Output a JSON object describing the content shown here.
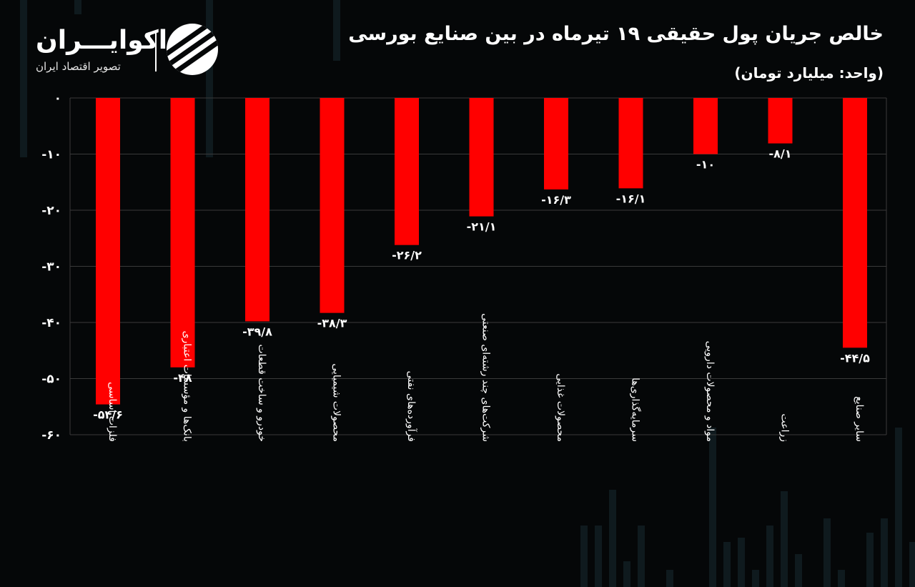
{
  "header": {
    "title": "خالص جریان پول حقیقی ۱۹ تیرماه در بین صنایع بورسی",
    "subtitle": "(واحد: میلیارد تومان)"
  },
  "brand": {
    "name": "اکوایـــران",
    "tagline": "تصویر اقتصاد ایران",
    "logo_icon": "ecoiran-logo-icon"
  },
  "colors": {
    "background": "#050708",
    "bar": "#ff0000",
    "grid": "#3a3a3a",
    "text": "#ffffff"
  },
  "chart_data": {
    "type": "bar",
    "title": "خالص جریان پول حقیقی ۱۹ تیرماه در بین صنایع بورسی",
    "subtitle": "(واحد: میلیارد تومان)",
    "categories": [
      "فلزات اساسی",
      "بانک‌ها و مؤسسات اعتباری",
      "خودرو و ساخت قطعات",
      "محصولات شیمیایی",
      "فرآورده‌های نفتی",
      "شرکت‌های چند رشته‌ای صنعتی",
      "محصولات غذایی",
      "سرمایه‌گذاری‌ها",
      "مواد و محصولات دارویی",
      "زراعت",
      "سایر صنایع"
    ],
    "values": [
      -54.6,
      -48,
      -39.8,
      -38.3,
      -26.2,
      -21.1,
      -16.3,
      -16.1,
      -10,
      -8.1,
      -44.5
    ],
    "value_labels": [
      "-۵۴/۶",
      "-۴۸",
      "-۳۹/۸",
      "-۳۸/۳",
      "-۲۶/۲",
      "-۲۱/۱",
      "-۱۶/۳",
      "-۱۶/۱",
      "-۱۰",
      "-۸/۱",
      "-۴۴/۵"
    ],
    "y_ticks": [
      0,
      -10,
      -20,
      -30,
      -40,
      -50,
      -60
    ],
    "y_tick_labels": [
      "۰",
      "-۱۰",
      "-۲۰",
      "-۳۰",
      "-۴۰",
      "-۵۰",
      "-۶۰"
    ],
    "ylim": [
      -60,
      0
    ],
    "grid": true,
    "legend": "none"
  }
}
